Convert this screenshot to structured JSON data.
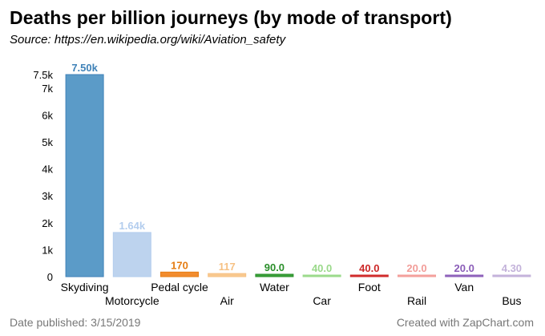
{
  "chart_data": {
    "type": "bar",
    "title": "Deaths per billion journeys (by mode of transport)",
    "subtitle": "Source: https://en.wikipedia.org/wiki/Aviation_safety",
    "xlabel": "",
    "ylabel": "",
    "ylim": [
      0,
      7500
    ],
    "yticks": [
      0,
      1000,
      2000,
      3000,
      4000,
      5000,
      6000,
      7000,
      7500
    ],
    "ytick_labels": [
      "0",
      "1k",
      "2k",
      "3k",
      "4k",
      "5k",
      "6k",
      "7k",
      "7.5k"
    ],
    "categories": [
      "Skydiving",
      "Motorcycle",
      "Pedal cycle",
      "Air",
      "Water",
      "Car",
      "Foot",
      "Rail",
      "Van",
      "Bus"
    ],
    "values": [
      7500,
      1640,
      170,
      117,
      90.0,
      40.0,
      40.0,
      20.0,
      20.0,
      4.3
    ],
    "value_labels": [
      "7.50k",
      "1.64k",
      "170",
      "117",
      "90.0",
      "40.0",
      "40.0",
      "20.0",
      "20.0",
      "4.30"
    ],
    "colors": [
      "#5b9bc8",
      "#bdd3ee",
      "#f28c2e",
      "#f8c98f",
      "#3aa03a",
      "#9fdc8f",
      "#d62f2f",
      "#f5a3a0",
      "#9467bd",
      "#c6b4dc"
    ],
    "label_colors": [
      "#3f82b8",
      "#b3cdee",
      "#e57c12",
      "#f6c184",
      "#2a8f2a",
      "#9ad98a",
      "#cc2727",
      "#f29c98",
      "#8a5cb8",
      "#c3b2da"
    ]
  },
  "footer": {
    "date_published": "Date published: 3/15/2019",
    "credit": "Created with ZapChart.com"
  }
}
